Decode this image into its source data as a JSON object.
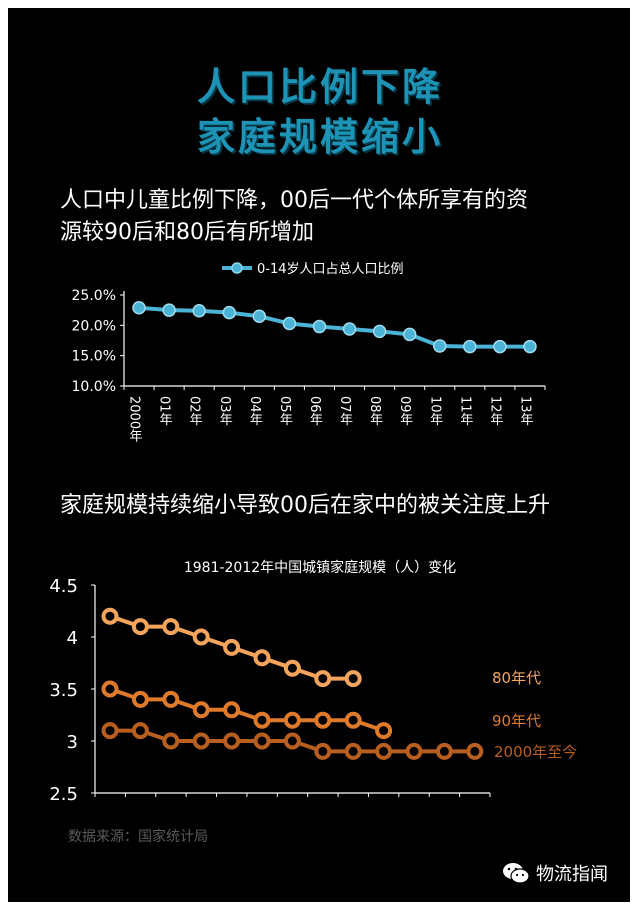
{
  "title_line1": "人口比例下降",
  "title_line2": "家庭规模缩小",
  "caption1_line1": "人口中儿童比例下降，00后一代个体所享有的资",
  "caption1_line2": "源较90后和80后有所增加",
  "caption2": "家庭规模持续缩小导致00后在家中的被关注度上升",
  "source": "数据来源：国家统计局",
  "brand": "物流指闻",
  "colors": {
    "line1": "#4ab3d6",
    "s80": "#f4a55b",
    "s90": "#df7a2a",
    "s2000": "#b85e1e"
  },
  "chart_data": [
    {
      "type": "line",
      "categories": [
        "2000年",
        "01年",
        "02年",
        "03年",
        "04年",
        "05年",
        "06年",
        "07年",
        "08年",
        "09年",
        "10年",
        "11年",
        "12年",
        "13年"
      ],
      "series": [
        {
          "name": "0-14岁人口占总人口比例",
          "values": [
            22.9,
            22.5,
            22.4,
            22.1,
            21.5,
            20.3,
            19.8,
            19.4,
            19.0,
            18.5,
            16.6,
            16.5,
            16.5,
            16.5
          ]
        }
      ],
      "ylim": [
        10,
        25
      ],
      "yticks": [
        "25.0%",
        "20.0%",
        "15.0%",
        "10.0%"
      ],
      "legend": "top"
    },
    {
      "type": "line",
      "title": "1981-2012年中国城镇家庭规模（人）变化",
      "ylim": [
        2.5,
        4.5
      ],
      "yticks": [
        "4.5",
        "4",
        "3.5",
        "3",
        "2.5"
      ],
      "series": [
        {
          "name": "80年代",
          "start": 0,
          "values": [
            4.2,
            4.1,
            4.1,
            4.0,
            3.9,
            3.8,
            3.7,
            3.6,
            3.6
          ]
        },
        {
          "name": "90年代",
          "start": 0,
          "values": [
            3.5,
            3.4,
            3.4,
            3.3,
            3.3,
            3.2,
            3.2,
            3.2,
            3.2,
            3.1
          ]
        },
        {
          "name": "2000年至今",
          "start": 0,
          "values": [
            3.1,
            3.1,
            3.0,
            3.0,
            3.0,
            3.0,
            3.0,
            2.9,
            2.9,
            2.9,
            2.9,
            2.9,
            2.9
          ]
        }
      ],
      "legend": "right"
    }
  ]
}
